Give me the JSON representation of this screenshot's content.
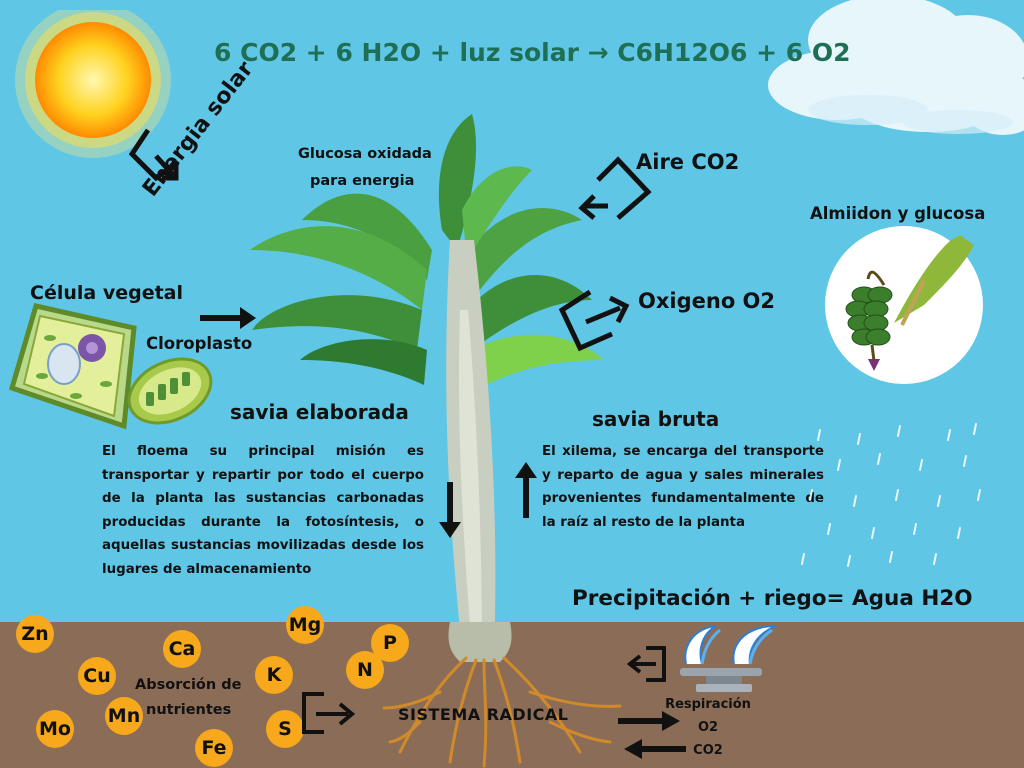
{
  "formula": "6 CO2 + 6 H2O + luz solar → C6H12O6 + 6 O2",
  "labels": {
    "energia_solar": "Energia solar",
    "glucosa_line1": "Glucosa oxidada",
    "glucosa_line2": "para energia",
    "aire_co2": "Aire CO2",
    "almidon": "Almiidon y glucosa",
    "celula": "Célula vegetal",
    "cloroplasto": "Cloroplasto",
    "oxigeno": "Oxigeno O2",
    "savia_elaborada": "savia elaborada",
    "savia_bruta": "savia bruta",
    "precipitacion": "Precipitación + riego= Agua H2O",
    "absorcion_line1": "Absorción de",
    "absorcion_line2": "nutrientes",
    "sistema_radical": "SISTEMA RADICAL",
    "respiracion": "Respiración",
    "resp_o2": "O2",
    "resp_co2": "CO2"
  },
  "floema_text": "El floema  su principal misión es transportar y repartir por todo el cuerpo de la planta las sustancias carbonadas producidas durante la fotosíntesis, o aquellas sustancias movilizadas desde los lugares de almacenamiento",
  "xilema_text": "El xilema, se encarga del transporte y reparto de agua y sales minerales provenientes fundamentalmente de la raíz al resto de la planta",
  "nutrients": {
    "zn": "Zn",
    "ca": "Ca",
    "mg": "Mg",
    "p": "P",
    "cu": "Cu",
    "k": "K",
    "n": "N",
    "mn": "Mn",
    "mo": "Mo",
    "s": "S",
    "fe": "Fe"
  },
  "colors": {
    "sky": "#5fc6e6",
    "soil": "#8b6d57",
    "formula": "#1f6f55",
    "nutrient": "#f7a81b",
    "sun": "#ffce1a"
  }
}
